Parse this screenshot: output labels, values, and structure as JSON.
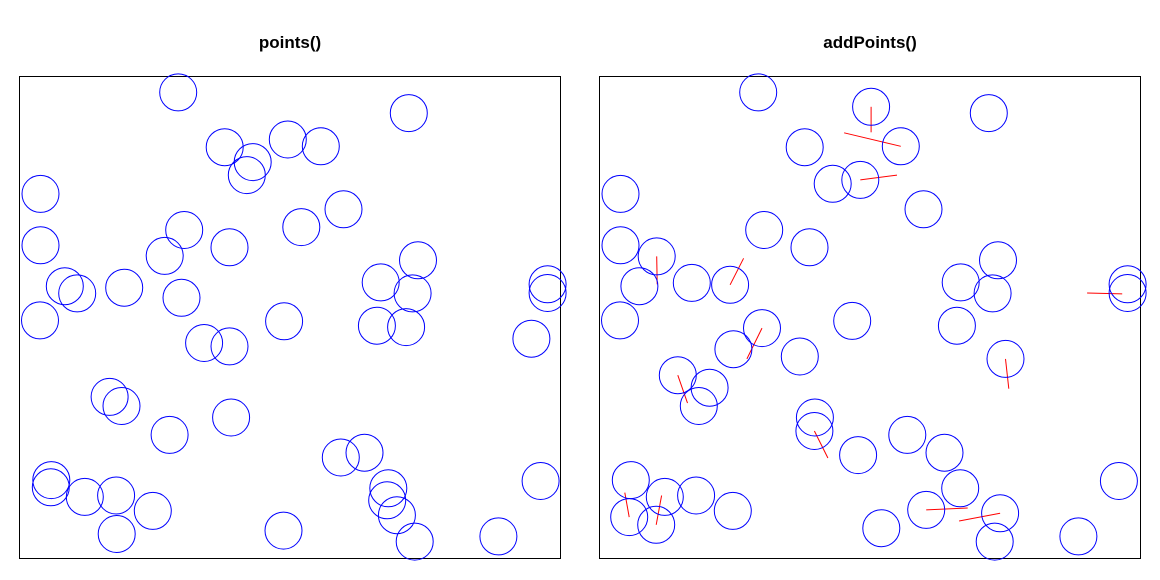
{
  "chart_data": [
    {
      "type": "scatter",
      "title": "points()",
      "xlim": [
        0,
        1
      ],
      "ylim": [
        0,
        1
      ],
      "point_color": "#0000FF",
      "point_shape": "open-circle",
      "x": [
        0.293,
        0.72,
        0.379,
        0.431,
        0.42,
        0.496,
        0.557,
        0.038,
        0.599,
        0.038,
        0.521,
        0.304,
        0.268,
        0.388,
        0.668,
        0.737,
        0.083,
        0.106,
        0.037,
        0.193,
        0.299,
        0.977,
        0.727,
        0.977,
        0.947,
        0.715,
        0.489,
        0.341,
        0.388,
        0.661,
        0.188,
        0.166,
        0.277,
        0.391,
        0.594,
        0.638,
        0.058,
        0.057,
        0.12,
        0.178,
        0.246,
        0.682,
        0.68,
        0.698,
        0.964,
        0.179,
        0.488,
        0.731,
        0.886
      ],
      "y": [
        0.968,
        0.925,
        0.854,
        0.823,
        0.796,
        0.87,
        0.856,
        0.757,
        0.725,
        0.65,
        0.688,
        0.682,
        0.628,
        0.646,
        0.573,
        0.619,
        0.565,
        0.55,
        0.494,
        0.562,
        0.541,
        0.569,
        0.55,
        0.551,
        0.456,
        0.48,
        0.492,
        0.447,
        0.44,
        0.483,
        0.316,
        0.335,
        0.256,
        0.292,
        0.209,
        0.219,
        0.162,
        0.147,
        0.127,
        0.13,
        0.098,
        0.145,
        0.12,
        0.089,
        0.16,
        0.05,
        0.057,
        0.034,
        0.045
      ]
    },
    {
      "type": "scatter",
      "title": "addPoints()",
      "xlim": [
        0,
        1
      ],
      "ylim": [
        0,
        1
      ],
      "point_color": "#0000FF",
      "point_shape": "open-circle",
      "segment_color": "#FF0000",
      "x": [
        0.293,
        0.72,
        0.502,
        0.557,
        0.379,
        0.431,
        0.482,
        0.038,
        0.599,
        0.038,
        0.105,
        0.304,
        0.241,
        0.388,
        0.668,
        0.737,
        0.073,
        0.17,
        0.037,
        0.3,
        0.247,
        0.977,
        0.727,
        0.977,
        0.467,
        0.751,
        0.37,
        0.144,
        0.203,
        0.661,
        0.183,
        0.397,
        0.569,
        0.398,
        0.478,
        0.638,
        0.057,
        0.054,
        0.12,
        0.178,
        0.246,
        0.667,
        0.604,
        0.741,
        0.961,
        0.104,
        0.521,
        0.731,
        0.886
      ],
      "y": [
        0.968,
        0.925,
        0.938,
        0.856,
        0.854,
        0.778,
        0.786,
        0.757,
        0.725,
        0.65,
        0.627,
        0.682,
        0.568,
        0.646,
        0.573,
        0.619,
        0.565,
        0.572,
        0.494,
        0.478,
        0.434,
        0.569,
        0.55,
        0.551,
        0.493,
        0.414,
        0.419,
        0.38,
        0.354,
        0.483,
        0.316,
        0.264,
        0.256,
        0.292,
        0.214,
        0.219,
        0.162,
        0.085,
        0.127,
        0.13,
        0.098,
        0.145,
        0.1,
        0.093,
        0.16,
        0.069,
        0.062,
        0.034,
        0.045
      ],
      "segments": [
        {
          "x1": 0.502,
          "y1": 0.938,
          "x2": 0.502,
          "y2": 0.885
        },
        {
          "x1": 0.557,
          "y1": 0.856,
          "x2": 0.452,
          "y2": 0.884
        },
        {
          "x1": 0.482,
          "y1": 0.786,
          "x2": 0.55,
          "y2": 0.796
        },
        {
          "x1": 0.105,
          "y1": 0.627,
          "x2": 0.106,
          "y2": 0.569
        },
        {
          "x1": 0.241,
          "y1": 0.568,
          "x2": 0.266,
          "y2": 0.623
        },
        {
          "x1": 0.3,
          "y1": 0.478,
          "x2": 0.272,
          "y2": 0.414
        },
        {
          "x1": 0.751,
          "y1": 0.414,
          "x2": 0.757,
          "y2": 0.352
        },
        {
          "x1": 0.144,
          "y1": 0.38,
          "x2": 0.162,
          "y2": 0.322
        },
        {
          "x1": 0.397,
          "y1": 0.264,
          "x2": 0.422,
          "y2": 0.208
        },
        {
          "x1": 0.604,
          "y1": 0.1,
          "x2": 0.681,
          "y2": 0.104
        },
        {
          "x1": 0.054,
          "y1": 0.085,
          "x2": 0.046,
          "y2": 0.136
        },
        {
          "x1": 0.104,
          "y1": 0.069,
          "x2": 0.114,
          "y2": 0.13
        },
        {
          "x1": 0.967,
          "y1": 0.549,
          "x2": 0.902,
          "y2": 0.551
        },
        {
          "x1": 0.741,
          "y1": 0.093,
          "x2": 0.665,
          "y2": 0.077
        }
      ]
    }
  ]
}
